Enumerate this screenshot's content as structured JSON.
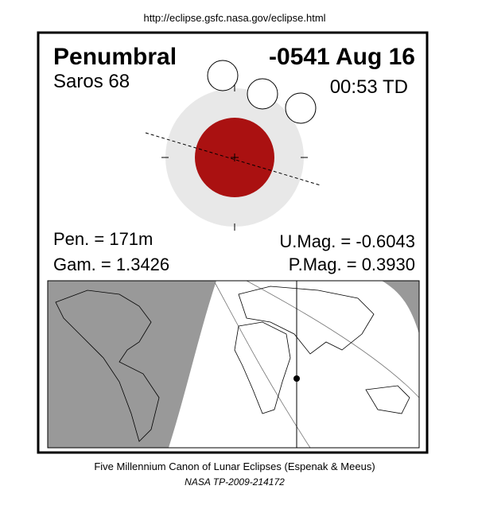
{
  "header": {
    "url": "http://eclipse.gsfc.nasa.gov/eclipse.html"
  },
  "eclipse": {
    "type": "Penumbral",
    "date": "-0541 Aug 16",
    "saros": "Saros  68",
    "time": "00:53 TD",
    "pen": "Pen. = 171m",
    "gam": "Gam. = 1.3426",
    "umag": "U.Mag. = -0.6043",
    "pmag": "P.Mag. = 0.3930"
  },
  "footer": {
    "line1": "Five Millennium Canon of Lunar Eclipses (Espenak & Meeus)",
    "line2": "NASA TP-2009-214172"
  }
}
